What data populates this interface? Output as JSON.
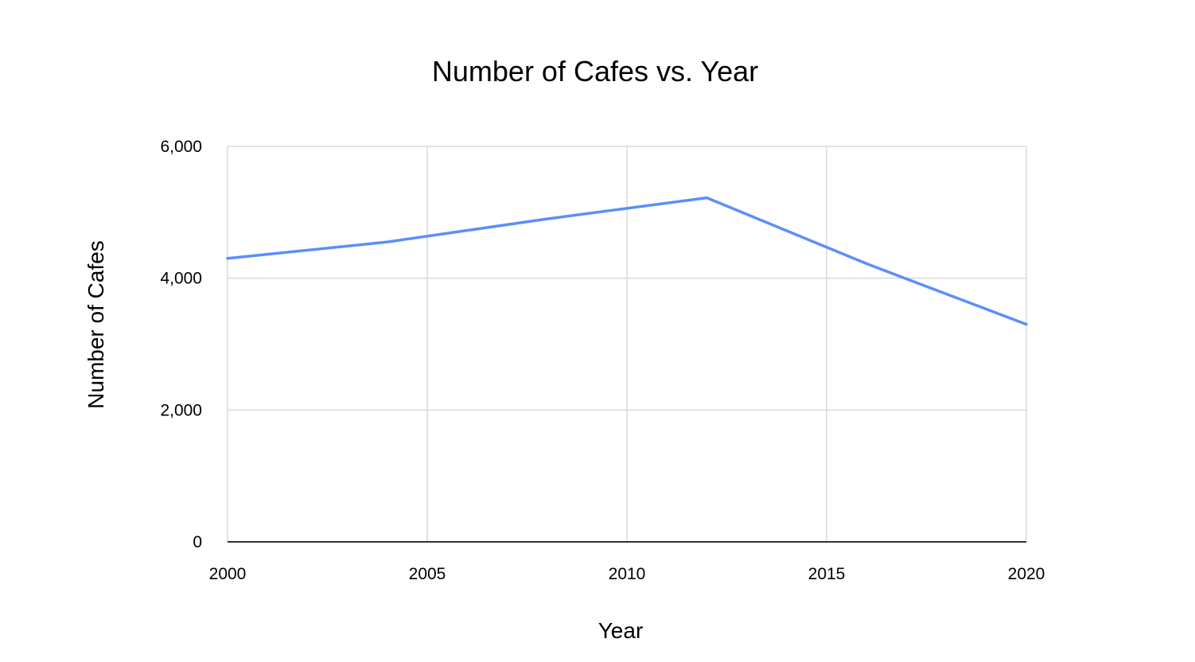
{
  "chart_data": {
    "type": "line",
    "title": "Number of Cafes vs. Year",
    "xlabel": "Year",
    "ylabel": "Number of Cafes",
    "xlim": [
      2000,
      2020
    ],
    "ylim": [
      0,
      6000
    ],
    "x_ticks": [
      2000,
      2005,
      2010,
      2015,
      2020
    ],
    "y_ticks": [
      0,
      2000,
      4000,
      6000
    ],
    "x_tick_labels": [
      "2000",
      "2005",
      "2010",
      "2015",
      "2020"
    ],
    "y_tick_labels": [
      "0",
      "2,000",
      "4,000",
      "6,000"
    ],
    "grid": true,
    "legend": "none",
    "series": [
      {
        "color": "#5b8ff9",
        "points": [
          {
            "x": 2000,
            "y": 4300
          },
          {
            "x": 2004,
            "y": 4550
          },
          {
            "x": 2008,
            "y": 4900
          },
          {
            "x": 2012,
            "y": 5220
          },
          {
            "x": 2016,
            "y": 4220
          },
          {
            "x": 2020,
            "y": 3300
          }
        ]
      }
    ]
  }
}
